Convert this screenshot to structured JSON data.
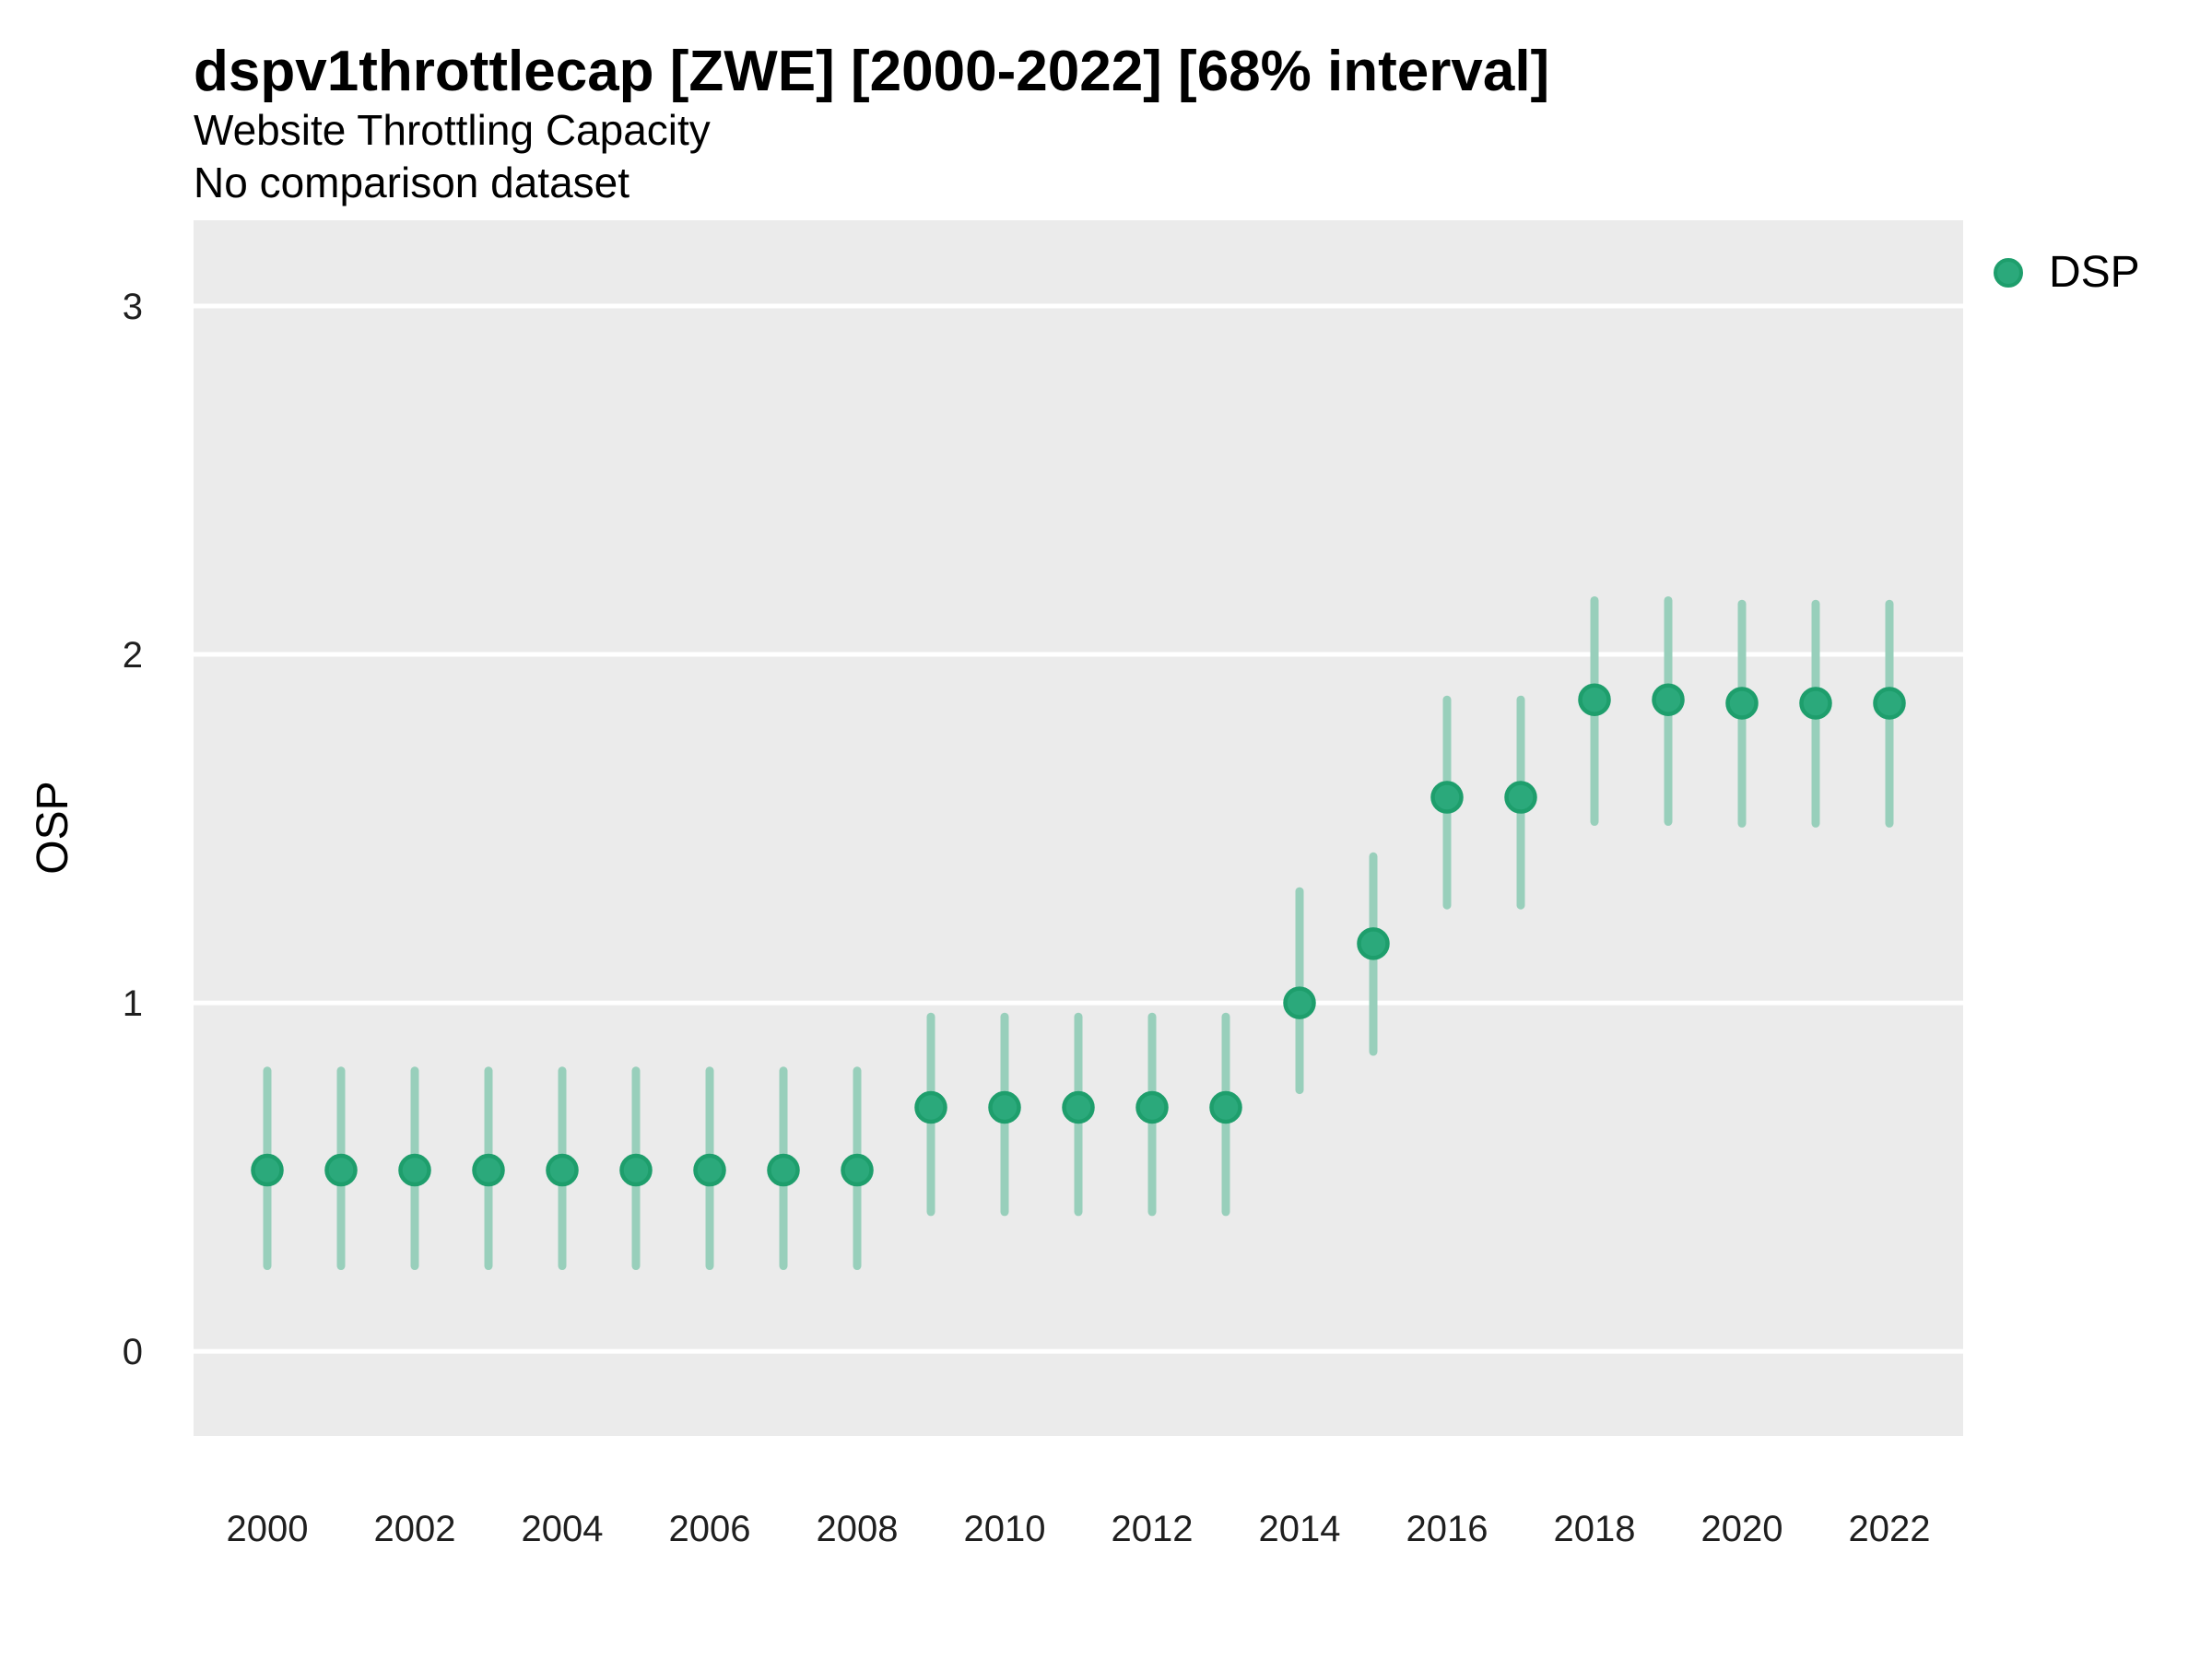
{
  "header": {
    "title": "dspv1throttlecap [ZWE] [2000-2022] [68% interval]",
    "subtitle": "Website Throttling Capacity",
    "note": "No comparison dataset"
  },
  "chart_data": {
    "type": "pointrange",
    "title": "dspv1throttlecap [ZWE] [2000-2022] [68% interval]",
    "subtitle": "Website Throttling Capacity",
    "note": "No comparison dataset",
    "xlabel": "",
    "ylabel": "OSP",
    "legend": {
      "label": "DSP",
      "position": "right-top"
    },
    "x": [
      2000,
      2001,
      2002,
      2003,
      2004,
      2005,
      2006,
      2007,
      2008,
      2009,
      2010,
      2011,
      2012,
      2013,
      2014,
      2015,
      2016,
      2017,
      2018,
      2019,
      2020,
      2021,
      2022
    ],
    "series": [
      {
        "name": "DSP",
        "mid": [
          0.52,
          0.52,
          0.52,
          0.52,
          0.52,
          0.52,
          0.52,
          0.52,
          0.52,
          0.7,
          0.7,
          0.7,
          0.7,
          0.7,
          1.0,
          1.17,
          1.59,
          1.59,
          1.87,
          1.87,
          1.86,
          1.86,
          1.86
        ],
        "lo": [
          0.245,
          0.245,
          0.245,
          0.245,
          0.245,
          0.245,
          0.245,
          0.245,
          0.245,
          0.4,
          0.4,
          0.4,
          0.4,
          0.4,
          0.75,
          0.86,
          1.28,
          1.28,
          1.52,
          1.52,
          1.515,
          1.515,
          1.515
        ],
        "hi": [
          0.805,
          0.805,
          0.805,
          0.805,
          0.805,
          0.805,
          0.805,
          0.805,
          0.805,
          0.96,
          0.96,
          0.96,
          0.96,
          0.96,
          1.32,
          1.42,
          1.87,
          1.87,
          2.155,
          2.155,
          2.145,
          2.145,
          2.145
        ]
      }
    ],
    "x_axis": {
      "ticks": [
        2000,
        2002,
        2004,
        2006,
        2008,
        2010,
        2012,
        2014,
        2016,
        2018,
        2020,
        2022
      ],
      "range": [
        1999,
        2023
      ]
    },
    "y_axis": {
      "ticks": [
        0,
        1,
        2,
        3
      ],
      "range": [
        -0.243,
        3.246
      ]
    },
    "grid": "major-horizontal",
    "interval_label": "68% interval",
    "colors": {
      "point": "#2BA97B",
      "point_border": "#1E9E6C",
      "interval": "#98CFBB",
      "panel_bg": "#EBEBEB",
      "gridline": "#FFFFFF",
      "tick_text": "#1F1F1F"
    }
  }
}
